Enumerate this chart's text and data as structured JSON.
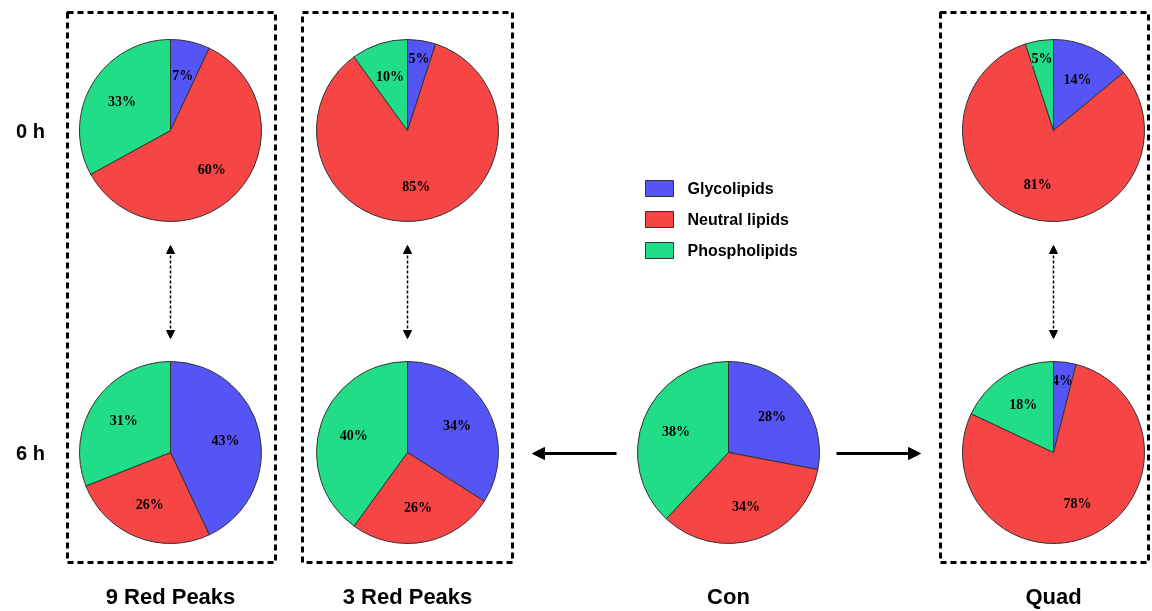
{
  "chart_data": [
    {
      "type": "pie",
      "categories": [
        "Glycolipids",
        "Neutral lipids",
        "Phospholipids"
      ],
      "values": [
        7,
        60,
        33
      ],
      "colors": [
        "#5555f5",
        "#f54545",
        "#22dd88"
      ],
      "value_labels": [
        "7%",
        "60%",
        "33%"
      ],
      "annotations": [
        "0 h"
      ],
      "legend": "right"
    },
    {
      "type": "pie",
      "categories": [
        null,
        null,
        null
      ],
      "values": [
        5,
        85,
        10
      ],
      "colors": [
        "#5555f5",
        "#f54545",
        "#22dd88"
      ],
      "value_labels": [
        "5%",
        "85%",
        "10%"
      ],
      "legend": false
    },
    {
      "type": "pie",
      "categories": [
        null,
        null,
        null
      ],
      "values": [
        14,
        81,
        5
      ],
      "colors": [
        "#5555f5",
        "#f54545",
        "#22dd88"
      ],
      "value_labels": [
        "14%",
        "81%",
        "5%"
      ],
      "legend": false
    },
    {
      "type": "pie",
      "categories": [
        null,
        null,
        null
      ],
      "values": [
        43,
        26,
        31
      ],
      "colors": [
        "#5555f5",
        "#f54545",
        "#22dd88"
      ],
      "value_labels": [
        "43%",
        "26%",
        "31%"
      ],
      "annotations": [
        "6 h"
      ],
      "xlabel": "9 Red Peaks",
      "legend": false
    },
    {
      "type": "pie",
      "categories": [
        null,
        null,
        null
      ],
      "values": [
        34,
        26,
        40
      ],
      "colors": [
        "#5555f5",
        "#f54545",
        "#22dd88"
      ],
      "value_labels": [
        "34%",
        "26%",
        "40%"
      ],
      "xlabel": "3 Red Peaks",
      "legend": false
    },
    {
      "type": "pie",
      "categories": [
        null,
        null,
        null
      ],
      "values": [
        28,
        34,
        38
      ],
      "colors": [
        "#5555f5",
        "#f54545",
        "#22dd88"
      ],
      "value_labels": [
        "28%",
        "34%",
        "38%"
      ],
      "xlabel": "Con",
      "legend": false
    },
    {
      "type": "pie",
      "categories": [
        null,
        null,
        null
      ],
      "values": [
        4,
        78,
        18
      ],
      "colors": [
        "#5555f5",
        "#f54545",
        "#22dd88"
      ],
      "value_labels": [
        "4%",
        "78%",
        "18%"
      ],
      "xlabel": "Quad",
      "legend": false
    }
  ]
}
